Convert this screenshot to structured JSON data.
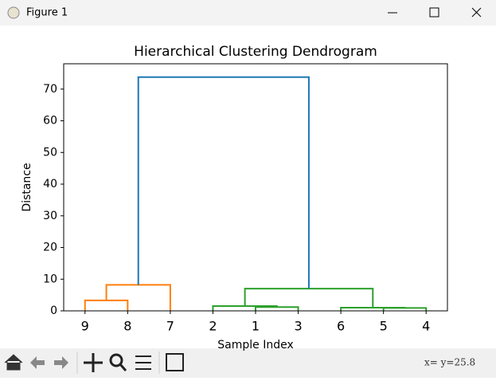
{
  "window": {
    "title": "Figure 1"
  },
  "chart_data": {
    "type": "dendrogram",
    "title": "Hierarchical Clustering Dendrogram",
    "x_label": "Sample Index",
    "y_label": "Distance",
    "categories": [
      "9",
      "8",
      "7",
      "2",
      "1",
      "3",
      "6",
      "5",
      "4"
    ],
    "xlim": [
      0,
      90
    ],
    "ylim": [
      0,
      78
    ],
    "yticks": [
      0,
      10,
      20,
      30,
      40,
      50,
      60,
      70
    ],
    "links": [
      {
        "color": "#ff7f0e",
        "x": [
          5,
          5,
          15,
          15
        ],
        "y": [
          0,
          3.3,
          3.3,
          0
        ]
      },
      {
        "color": "#ff7f0e",
        "x": [
          10,
          10,
          25,
          25
        ],
        "y": [
          3.3,
          8.2,
          8.2,
          0
        ]
      },
      {
        "color": "#2ca02c",
        "x": [
          45,
          45,
          55,
          55
        ],
        "y": [
          0,
          1.2,
          1.2,
          0
        ]
      },
      {
        "color": "#2ca02c",
        "x": [
          35,
          35,
          50,
          50
        ],
        "y": [
          0,
          1.5,
          1.5,
          1.2
        ]
      },
      {
        "color": "#2ca02c",
        "x": [
          75,
          75,
          85,
          85
        ],
        "y": [
          0,
          0.9,
          0.9,
          0
        ]
      },
      {
        "color": "#2ca02c",
        "x": [
          65,
          65,
          80,
          80
        ],
        "y": [
          0,
          1.0,
          1.0,
          0.9
        ]
      },
      {
        "color": "#2ca02c",
        "x": [
          42.5,
          42.5,
          72.5,
          72.5
        ],
        "y": [
          1.5,
          7.0,
          7.0,
          1.0
        ]
      },
      {
        "color": "#1f77b4",
        "x": [
          17.5,
          17.5,
          57.5,
          57.5
        ],
        "y": [
          8.2,
          73.8,
          73.8,
          7.0
        ]
      }
    ]
  },
  "status": "x=  y=25.8"
}
